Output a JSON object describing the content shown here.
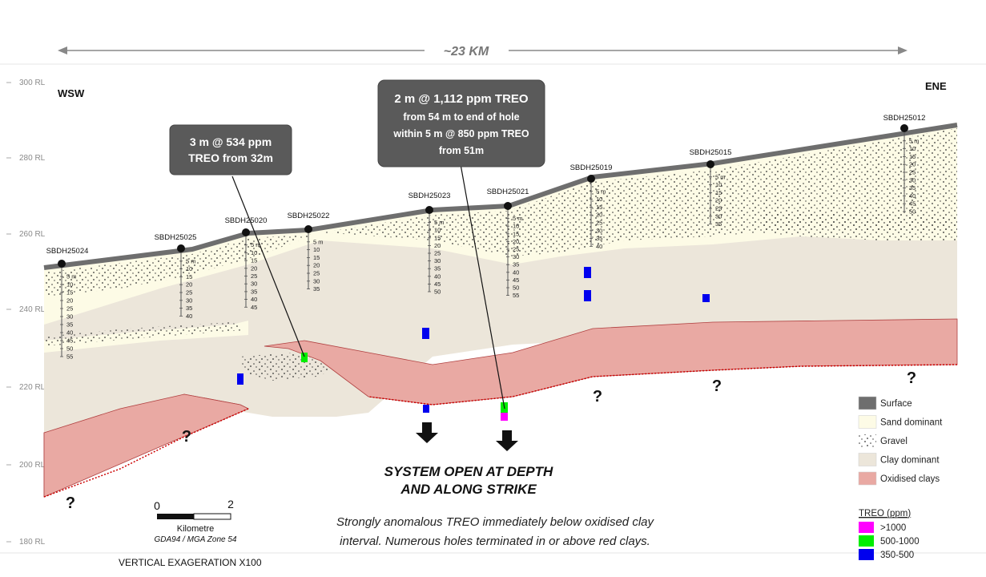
{
  "section": {
    "span_label": "~23 KM",
    "west_label": "WSW",
    "east_label": "ENE",
    "rl_labels": [
      "300 RL",
      "280 RL",
      "260 RL",
      "240 RL",
      "220 RL",
      "200 RL",
      "180 RL"
    ],
    "vertical_exaggeration": "VERTICAL EXAGERATION X100"
  },
  "holes": [
    {
      "id": "SBDH25024",
      "depths": [
        "5 m",
        "10",
        "15",
        "20",
        "25",
        "30",
        "35",
        "40",
        "45",
        "50",
        "55"
      ]
    },
    {
      "id": "SBDH25025",
      "depths": [
        "5 m",
        "10",
        "15",
        "20",
        "25",
        "30",
        "35",
        "40"
      ]
    },
    {
      "id": "SBDH25020",
      "depths": [
        "5 m",
        "10",
        "15",
        "20",
        "25",
        "30",
        "35",
        "40",
        "45"
      ]
    },
    {
      "id": "SBDH25022",
      "depths": [
        "5 m",
        "10",
        "15",
        "20",
        "25",
        "30",
        "35"
      ]
    },
    {
      "id": "SBDH25023",
      "depths": [
        "5 m",
        "10",
        "15",
        "20",
        "25",
        "30",
        "35",
        "40",
        "45",
        "50"
      ]
    },
    {
      "id": "SBDH25021",
      "depths": [
        "5 m",
        "10",
        "15",
        "20",
        "25",
        "30",
        "35",
        "40",
        "45",
        "50",
        "55"
      ]
    },
    {
      "id": "SBDH25019",
      "depths": [
        "5 m",
        "10",
        "15",
        "20",
        "25",
        "30",
        "35",
        "40"
      ]
    },
    {
      "id": "SBDH25015",
      "depths": [
        "5 m",
        "10",
        "15",
        "20",
        "25",
        "30",
        "35"
      ]
    },
    {
      "id": "SBDH25012",
      "depths": [
        "5 m",
        "10",
        "15",
        "20",
        "25",
        "30",
        "35",
        "40",
        "45",
        "50"
      ]
    }
  ],
  "callouts": {
    "left": {
      "lines": [
        "3 m @ 534 ppm",
        "TREO from 32m"
      ]
    },
    "right": {
      "lines": [
        "2 m @ 1,112 ppm TREO",
        "from 54 m to end of hole",
        "within 5 m @ 850 ppm TREO",
        "from 51m"
      ]
    }
  },
  "question_mark": "?",
  "headline": {
    "lines": [
      "SYSTEM OPEN AT DEPTH",
      "AND ALONG STRIKE"
    ]
  },
  "subtext": {
    "lines": [
      "Strongly anomalous TREO immediately below oxidised clay",
      "interval. Numerous holes terminated in or above red clays."
    ]
  },
  "scale": {
    "zero": "0",
    "two": "2",
    "unit": "Kilometre",
    "datum": "GDA94 / MGA Zone 54"
  },
  "legend": {
    "items": [
      {
        "label": "Surface",
        "color": "#6e6e6e"
      },
      {
        "label": "Sand dominant",
        "color": "#fdfbe6"
      },
      {
        "label": "Gravel",
        "color": "#ffffff"
      },
      {
        "label": "Clay dominant",
        "color": "#ece6da"
      },
      {
        "label": "Oxidised clays",
        "color": "#e9a9a3"
      }
    ],
    "treo_title": "TREO (ppm)",
    "treo_items": [
      {
        "label": ">1000",
        "color": "#ff00ff"
      },
      {
        "label": "500-1000",
        "color": "#00ee00"
      },
      {
        "label": "350-500",
        "color": "#0000ee"
      }
    ]
  },
  "colors": {
    "surface": "#6e6e6e",
    "sand": "#fdfbe6",
    "clay": "#ece6da",
    "oxidised": "#e9a9a3",
    "callout_bg": "#5a5a5a"
  }
}
